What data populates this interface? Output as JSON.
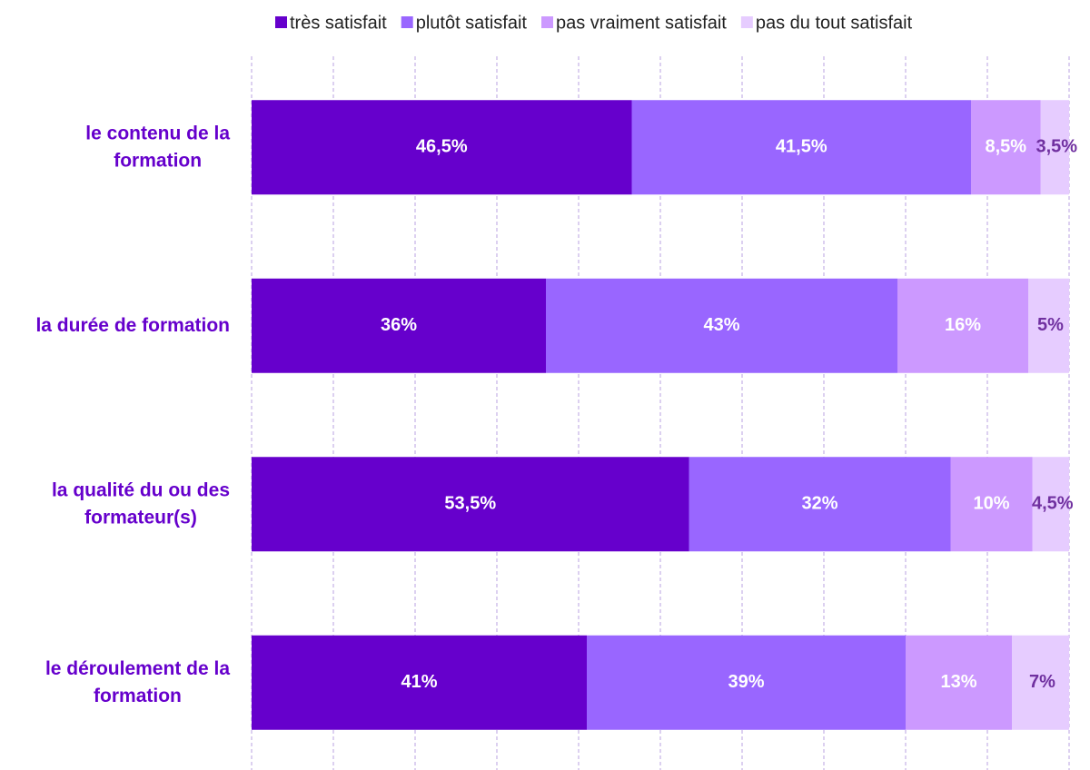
{
  "chart_data": {
    "type": "stacked-barh",
    "categories": [
      "le contenu de la formation",
      "la durée de formation",
      "la qualité du ou des formateur(s)",
      "le déroulement de la formation"
    ],
    "series": [
      {
        "name": "très satisfait",
        "color": "#6600cc",
        "values": [
          46.5,
          36,
          53.5,
          41
        ],
        "value_labels": [
          "46,5%",
          "36%",
          "53,5%",
          "41%"
        ]
      },
      {
        "name": "plutôt satisfait",
        "color": "#9966ff",
        "values": [
          41.5,
          43,
          32,
          39
        ],
        "value_labels": [
          "41,5%",
          "43%",
          "32%",
          "39%"
        ]
      },
      {
        "name": "pas vraiment satisfait",
        "color": "#cc99ff",
        "values": [
          8.5,
          16,
          10,
          13
        ],
        "value_labels": [
          "8,5%",
          "16%",
          "10%",
          "13%"
        ]
      },
      {
        "name": "pas du tout satisfait",
        "color": "#e6ccff",
        "values": [
          3.5,
          5,
          4.5,
          7
        ],
        "value_labels": [
          "3,5%",
          "5%",
          "4,5%",
          "7%"
        ]
      }
    ],
    "xlim": [
      0,
      100
    ],
    "xticks": [
      0,
      10,
      20,
      30,
      40,
      50,
      60,
      70,
      80,
      90,
      100
    ],
    "grid": true,
    "legend": "top"
  }
}
